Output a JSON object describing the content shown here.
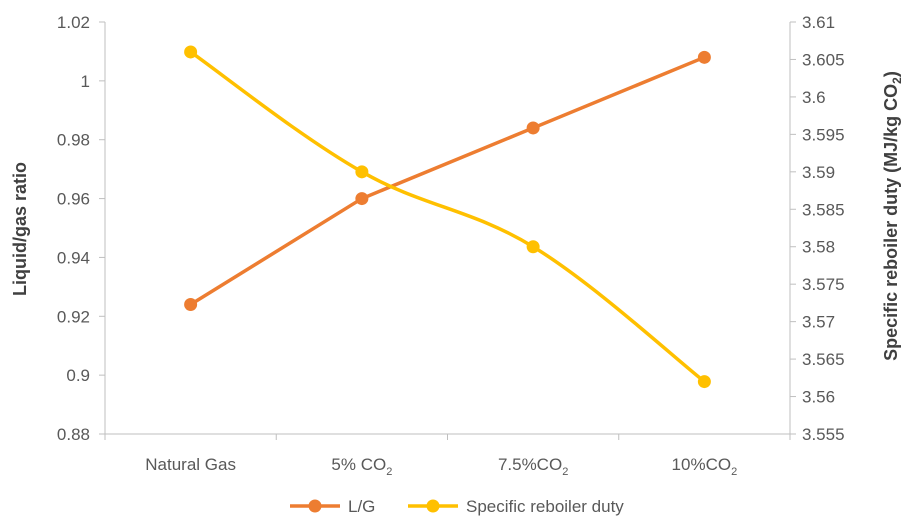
{
  "chart_data": {
    "type": "line",
    "categories": [
      {
        "main": "Natural Gas",
        "sub": ""
      },
      {
        "main": "5% CO",
        "sub": "2"
      },
      {
        "main": "7.5%CO",
        "sub": "2"
      },
      {
        "main": "10%CO",
        "sub": "2"
      }
    ],
    "y_left": {
      "label": "Liquid/gas ratio",
      "min": 0.88,
      "max": 1.02,
      "step": 0.02,
      "ticks": [
        "0.88",
        "0.9",
        "0.92",
        "0.94",
        "0.96",
        "0.98",
        "1",
        "1.02"
      ]
    },
    "y_right": {
      "label_main": "Specific reboiler duty (MJ/kg CO",
      "label_sub": "2",
      "label_end": ")",
      "min": 3.555,
      "max": 3.61,
      "step": 0.005,
      "ticks": [
        "3.555",
        "3.56",
        "3.565",
        "3.57",
        "3.575",
        "3.58",
        "3.585",
        "3.59",
        "3.595",
        "3.6",
        "3.605",
        "3.61"
      ]
    },
    "series": [
      {
        "name": "L/G",
        "axis": "left",
        "color": "#ED7D31",
        "values": [
          0.924,
          0.96,
          0.984,
          1.008
        ]
      },
      {
        "name": "Specific reboiler duty",
        "axis": "right",
        "color": "#FFC000",
        "values": [
          3.606,
          3.59,
          3.58,
          3.562
        ]
      }
    ],
    "legend_position": "bottom",
    "grid": false
  }
}
